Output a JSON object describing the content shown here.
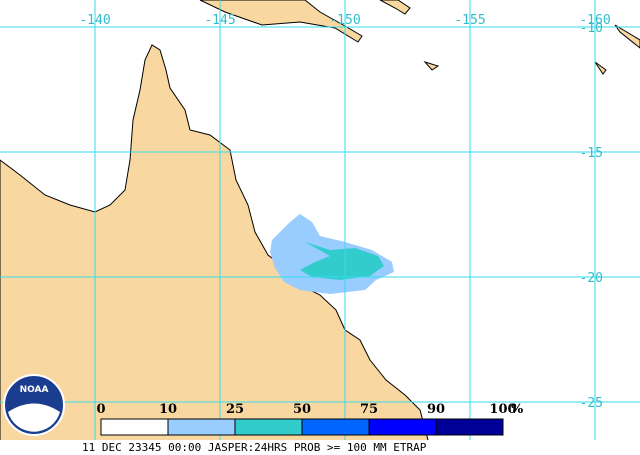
{
  "map": {
    "lon_labels": [
      "-140",
      "-145",
      "-150",
      "-155",
      "-160"
    ],
    "lat_labels": [
      "-10",
      "-15",
      "-20",
      "-25"
    ],
    "logo": "NOAA",
    "legend": {
      "ticks": [
        0,
        10,
        25,
        50,
        75,
        90,
        100
      ],
      "unit": "%",
      "colors": [
        "#ffffff",
        "#99ccff",
        "#33cccc",
        "#0066ff",
        "#0000ff",
        "#000099"
      ]
    },
    "footer": "11 DEC 23345 00:00 JASPER:24HRS PROB >= 100 MM ETRAP"
  }
}
